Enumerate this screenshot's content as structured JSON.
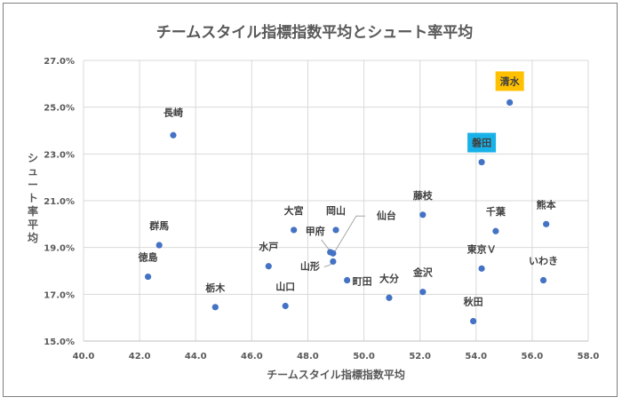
{
  "chart_data": {
    "type": "scatter",
    "title": "チームスタイル指標指数平均とシュート率平均",
    "xlabel": "チームスタイル指標指数平均",
    "ylabel": "シュート率平均",
    "xlim": [
      40.0,
      58.0
    ],
    "ylim": [
      15.0,
      27.0
    ],
    "x_ticks": [
      "40.0",
      "42.0",
      "44.0",
      "46.0",
      "48.0",
      "50.0",
      "52.0",
      "54.0",
      "56.0",
      "58.0"
    ],
    "y_ticks": [
      "15.0%",
      "17.0%",
      "19.0%",
      "21.0%",
      "23.0%",
      "25.0%",
      "27.0%"
    ],
    "grid": true,
    "marker_color": "#4472c4",
    "points": [
      {
        "label": "長崎",
        "x": 43.2,
        "y": 23.8
      },
      {
        "label": "群馬",
        "x": 42.7,
        "y": 19.1
      },
      {
        "label": "徳島",
        "x": 42.3,
        "y": 17.75
      },
      {
        "label": "栃木",
        "x": 44.7,
        "y": 16.45
      },
      {
        "label": "水戸",
        "x": 46.6,
        "y": 18.2
      },
      {
        "label": "大宮",
        "x": 47.5,
        "y": 19.75
      },
      {
        "label": "山口",
        "x": 47.2,
        "y": 16.5
      },
      {
        "label": "岡山",
        "x": 49.0,
        "y": 19.75
      },
      {
        "label": "甲府",
        "x": 48.8,
        "y": 18.8
      },
      {
        "label": "仙台",
        "x": 48.9,
        "y": 18.75
      },
      {
        "label": "山形",
        "x": 48.9,
        "y": 18.4
      },
      {
        "label": "町田",
        "x": 49.4,
        "y": 17.6
      },
      {
        "label": "大分",
        "x": 50.9,
        "y": 16.85
      },
      {
        "label": "金沢",
        "x": 52.1,
        "y": 17.1
      },
      {
        "label": "藤枝",
        "x": 52.1,
        "y": 20.4
      },
      {
        "label": "秋田",
        "x": 53.9,
        "y": 15.85
      },
      {
        "label": "東京Ｖ",
        "x": 54.2,
        "y": 18.1
      },
      {
        "label": "千葉",
        "x": 54.7,
        "y": 19.7
      },
      {
        "label": "熊本",
        "x": 56.5,
        "y": 20.0
      },
      {
        "label": "いわき",
        "x": 56.4,
        "y": 17.6
      },
      {
        "label": "磐田",
        "x": 54.2,
        "y": 22.65,
        "highlight": "#19b2e8"
      },
      {
        "label": "清水",
        "x": 55.2,
        "y": 25.2,
        "highlight": "#ffc000"
      }
    ]
  }
}
